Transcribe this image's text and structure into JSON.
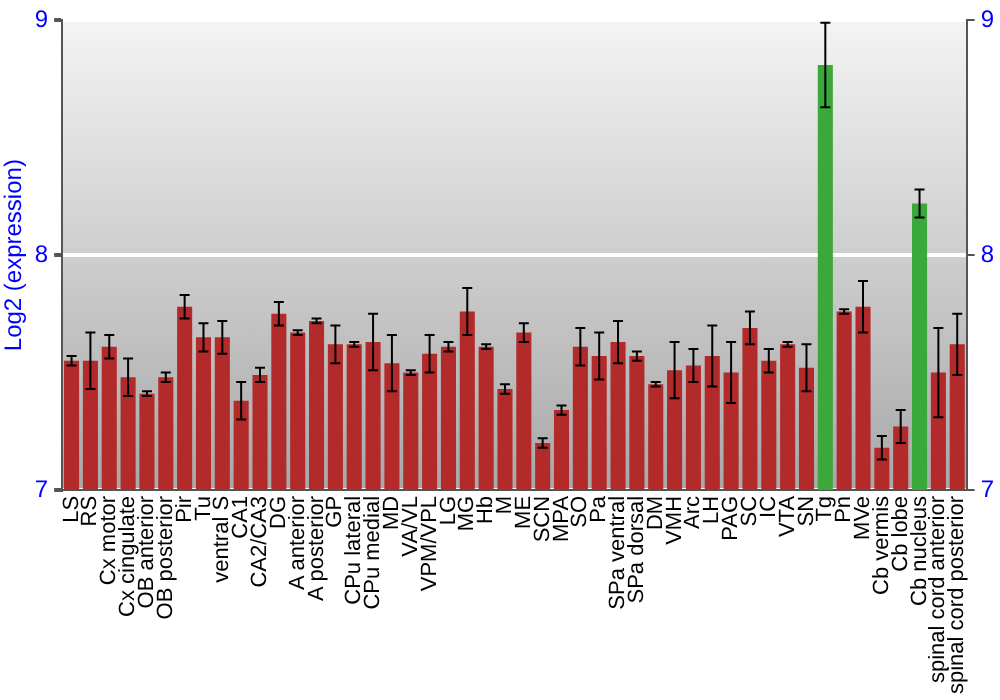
{
  "chart_data": {
    "type": "bar",
    "ylabel": "Log2 (expression)",
    "categories": [
      "LS",
      "RS",
      "Cx motor",
      "Cx cingulate",
      "OB anterior",
      "OB posterior",
      "Pir",
      "Tu",
      "ventral S",
      "CA1",
      "CA2/CA3",
      "DG",
      "A anterior",
      "A posterior",
      "GP",
      "CPu lateral",
      "CPu medial",
      "MD",
      "VA/VL",
      "VPM/VPL",
      "LG",
      "MG",
      "Hb",
      "M",
      "ME",
      "SCN",
      "MPA",
      "SO",
      "Pa",
      "SPa ventral",
      "SPa dorsal",
      "DM",
      "VMH",
      "Arc",
      "LH",
      "PAG",
      "SC",
      "IC",
      "VTA",
      "SN",
      "Tg",
      "Pn",
      "MVe",
      "Cb vermis",
      "Cb lobe",
      "Cb nucleus",
      "spinal cord anterior",
      "spinal cord posterior"
    ],
    "values": [
      7.55,
      7.55,
      7.61,
      7.48,
      7.41,
      7.48,
      7.78,
      7.65,
      7.65,
      7.38,
      7.49,
      7.75,
      7.67,
      7.72,
      7.62,
      7.62,
      7.63,
      7.54,
      7.5,
      7.58,
      7.61,
      7.76,
      7.61,
      7.43,
      7.67,
      7.2,
      7.34,
      7.61,
      7.57,
      7.63,
      7.57,
      7.45,
      7.51,
      7.53,
      7.57,
      7.5,
      7.69,
      7.55,
      7.62,
      7.52,
      8.81,
      7.76,
      7.78,
      7.18,
      7.27,
      8.22,
      7.5,
      7.62
    ],
    "errors": [
      0.02,
      0.12,
      0.05,
      0.08,
      0.01,
      0.02,
      0.05,
      0.06,
      0.07,
      0.08,
      0.03,
      0.05,
      0.01,
      0.01,
      0.08,
      0.01,
      0.12,
      0.12,
      0.01,
      0.08,
      0.02,
      0.1,
      0.01,
      0.02,
      0.04,
      0.02,
      0.02,
      0.08,
      0.1,
      0.09,
      0.02,
      0.01,
      0.12,
      0.07,
      0.13,
      0.13,
      0.07,
      0.05,
      0.01,
      0.1,
      0.18,
      0.01,
      0.11,
      0.05,
      0.07,
      0.06,
      0.19,
      0.13
    ],
    "colors": [
      "#b22a2a",
      "#b22a2a",
      "#b22a2a",
      "#b22a2a",
      "#b22a2a",
      "#b22a2a",
      "#b22a2a",
      "#b22a2a",
      "#b22a2a",
      "#b22a2a",
      "#b22a2a",
      "#b22a2a",
      "#b22a2a",
      "#b22a2a",
      "#b22a2a",
      "#b22a2a",
      "#b22a2a",
      "#b22a2a",
      "#b22a2a",
      "#b22a2a",
      "#b22a2a",
      "#b22a2a",
      "#b22a2a",
      "#b22a2a",
      "#b22a2a",
      "#b22a2a",
      "#b22a2a",
      "#b22a2a",
      "#b22a2a",
      "#b22a2a",
      "#b22a2a",
      "#b22a2a",
      "#b22a2a",
      "#b22a2a",
      "#b22a2a",
      "#b22a2a",
      "#b22a2a",
      "#b22a2a",
      "#b22a2a",
      "#b22a2a",
      "#3aa83a",
      "#b22a2a",
      "#b22a2a",
      "#b22a2a",
      "#b22a2a",
      "#3aa83a",
      "#b22a2a",
      "#b22a2a"
    ],
    "ylim": [
      7,
      9
    ],
    "yticks": [
      7,
      8,
      9
    ],
    "y2lim": [
      7,
      9
    ],
    "y2ticks": [
      7,
      8,
      9
    ],
    "grid": "y",
    "legend": false
  }
}
